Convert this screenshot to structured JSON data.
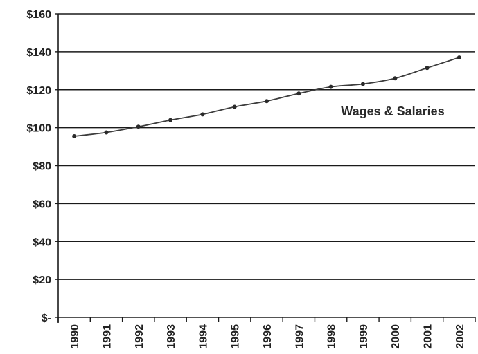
{
  "chart_data": {
    "type": "line",
    "title": "",
    "xlabel": "",
    "ylabel": "",
    "categories": [
      "1990",
      "1991",
      "1992",
      "1993",
      "1994",
      "1995",
      "1996",
      "1997",
      "1998",
      "1999",
      "2000",
      "2001",
      "2002"
    ],
    "series": [
      {
        "name": "Wages & Salaries",
        "values": [
          95.5,
          97.5,
          100.5,
          104,
          107,
          111,
          114,
          118,
          121.5,
          123,
          126,
          131.5,
          137
        ]
      }
    ],
    "ylim": [
      0,
      160
    ],
    "yticks": [
      0,
      20,
      40,
      60,
      80,
      100,
      120,
      140,
      160
    ],
    "ytick_labels": [
      "$-",
      "$20",
      "$40",
      "$60",
      "$80",
      "$100",
      "$120",
      "$140",
      "$160"
    ],
    "grid": "horizontal",
    "legend": "none",
    "colors": {
      "line": "#3c3c3c",
      "marker": "#2a2a2a",
      "grid": "#1a1a1a",
      "axis": "#1a1a1a",
      "text": "#222222"
    }
  }
}
